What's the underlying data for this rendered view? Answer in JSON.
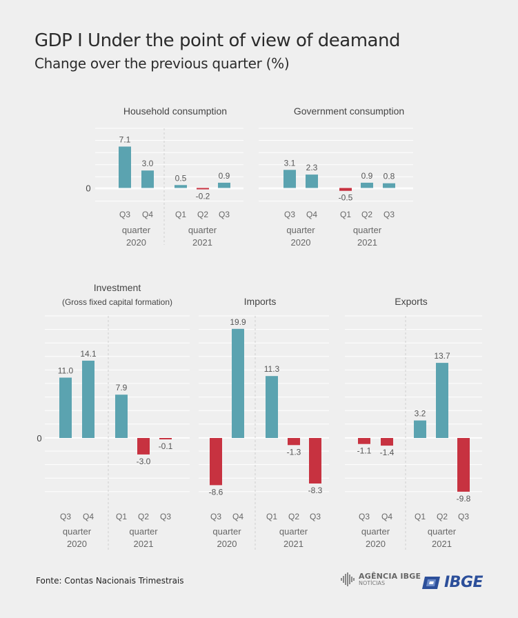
{
  "header": {
    "title": "GDP I Under the point of view of deamand",
    "subtitle": "Change over the previous quarter (%)"
  },
  "footer": {
    "source": "Fonte: Contas Nacionais Trimestrais",
    "agencia_top": "AGÊNCIA IBGE",
    "agencia_sub": "NOTÍCIAS",
    "ibge": "IBGE"
  },
  "colors": {
    "positive": "#5ba3b0",
    "negative": "#c73240",
    "grid": "#ffffff",
    "text": "#555555"
  },
  "chart_data": [
    {
      "type": "bar",
      "title": "Household consumption",
      "subtitle": "",
      "categories": [
        "Q3",
        "Q4",
        "Q1",
        "Q2",
        "Q3"
      ],
      "values": [
        7.1,
        3.0,
        0.5,
        -0.2,
        0.9
      ],
      "value_labels": [
        "7.1",
        "3.0",
        "0.5",
        "-0.2",
        "0.9"
      ],
      "groups": [
        {
          "label": "quarter",
          "year": "2020",
          "count": 2
        },
        {
          "label": "quarter",
          "year": "2021",
          "count": 3
        }
      ],
      "zero_label": "0",
      "grid": true
    },
    {
      "type": "bar",
      "title": "Government consumption",
      "subtitle": "",
      "categories": [
        "Q3",
        "Q4",
        "Q1",
        "Q2",
        "Q3"
      ],
      "values": [
        3.1,
        2.3,
        -0.5,
        0.9,
        0.8
      ],
      "value_labels": [
        "3.1",
        "2.3",
        "-0.5",
        "0.9",
        "0.8"
      ],
      "groups": [
        {
          "label": "quarter",
          "year": "2020",
          "count": 2
        },
        {
          "label": "quarter",
          "year": "2021",
          "count": 3
        }
      ],
      "zero_label": "",
      "grid": true
    },
    {
      "type": "bar",
      "title": "Investment",
      "subtitle": "(Gross fixed capital formation)",
      "categories": [
        "Q3",
        "Q4",
        "Q1",
        "Q2",
        "Q3"
      ],
      "values": [
        11.0,
        14.1,
        7.9,
        -3.0,
        -0.1
      ],
      "value_labels": [
        "11.0",
        "14.1",
        "7.9",
        "-3.0",
        "-0.1"
      ],
      "groups": [
        {
          "label": "quarter",
          "year": "2020",
          "count": 2
        },
        {
          "label": "quarter",
          "year": "2021",
          "count": 3
        }
      ],
      "zero_label": "0",
      "grid": true
    },
    {
      "type": "bar",
      "title": "Imports",
      "subtitle": "",
      "categories": [
        "Q3",
        "Q4",
        "Q1",
        "Q2",
        "Q3"
      ],
      "values": [
        -8.6,
        19.9,
        11.3,
        -1.3,
        -8.3
      ],
      "value_labels": [
        "-8.6",
        "19.9",
        "11.3",
        "-1.3",
        "-8.3"
      ],
      "groups": [
        {
          "label": "quarter",
          "year": "2020",
          "count": 2
        },
        {
          "label": "quarter",
          "year": "2021",
          "count": 3
        }
      ],
      "zero_label": "",
      "grid": true
    },
    {
      "type": "bar",
      "title": "Exports",
      "subtitle": "",
      "categories": [
        "Q3",
        "Q4",
        "Q1",
        "Q2",
        "Q3"
      ],
      "values": [
        -1.1,
        -1.4,
        3.2,
        13.7,
        -9.8
      ],
      "value_labels": [
        "-1.1",
        "-1.4",
        "3.2",
        "13.7",
        "-9.8"
      ],
      "groups": [
        {
          "label": "quarter",
          "year": "2020",
          "count": 2
        },
        {
          "label": "quarter",
          "year": "2021",
          "count": 3
        }
      ],
      "zero_label": "",
      "grid": true
    }
  ]
}
